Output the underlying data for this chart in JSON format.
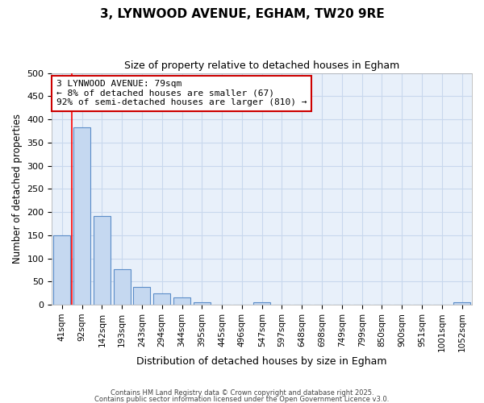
{
  "title1": "3, LYNWOOD AVENUE, EGHAM, TW20 9RE",
  "title2": "Size of property relative to detached houses in Egham",
  "xlabel": "Distribution of detached houses by size in Egham",
  "ylabel": "Number of detached properties",
  "bar_labels": [
    "41sqm",
    "92sqm",
    "142sqm",
    "193sqm",
    "243sqm",
    "294sqm",
    "344sqm",
    "395sqm",
    "445sqm",
    "496sqm",
    "547sqm",
    "597sqm",
    "648sqm",
    "698sqm",
    "749sqm",
    "799sqm",
    "850sqm",
    "900sqm",
    "951sqm",
    "1001sqm",
    "1052sqm"
  ],
  "bar_values": [
    150,
    383,
    192,
    76,
    38,
    25,
    16,
    6,
    1,
    0,
    5,
    0,
    0,
    0,
    0,
    0,
    0,
    0,
    0,
    0,
    5
  ],
  "bar_color": "#c5d8f0",
  "bar_edgecolor": "#5b8dc8",
  "bar_linewidth": 0.8,
  "red_line_x": 0.5,
  "annotation_text": "3 LYNWOOD AVENUE: 79sqm\n← 8% of detached houses are smaller (67)\n92% of semi-detached houses are larger (810) →",
  "annotation_box_color": "#ffffff",
  "annotation_box_edgecolor": "#cc0000",
  "grid_color": "#c8d8ed",
  "plot_bg_color": "#e8f0fa",
  "fig_bg_color": "#ffffff",
  "ylim": [
    0,
    500
  ],
  "yticks": [
    0,
    50,
    100,
    150,
    200,
    250,
    300,
    350,
    400,
    450,
    500
  ],
  "footer1": "Contains HM Land Registry data © Crown copyright and database right 2025.",
  "footer2": "Contains public sector information licensed under the Open Government Licence v3.0."
}
